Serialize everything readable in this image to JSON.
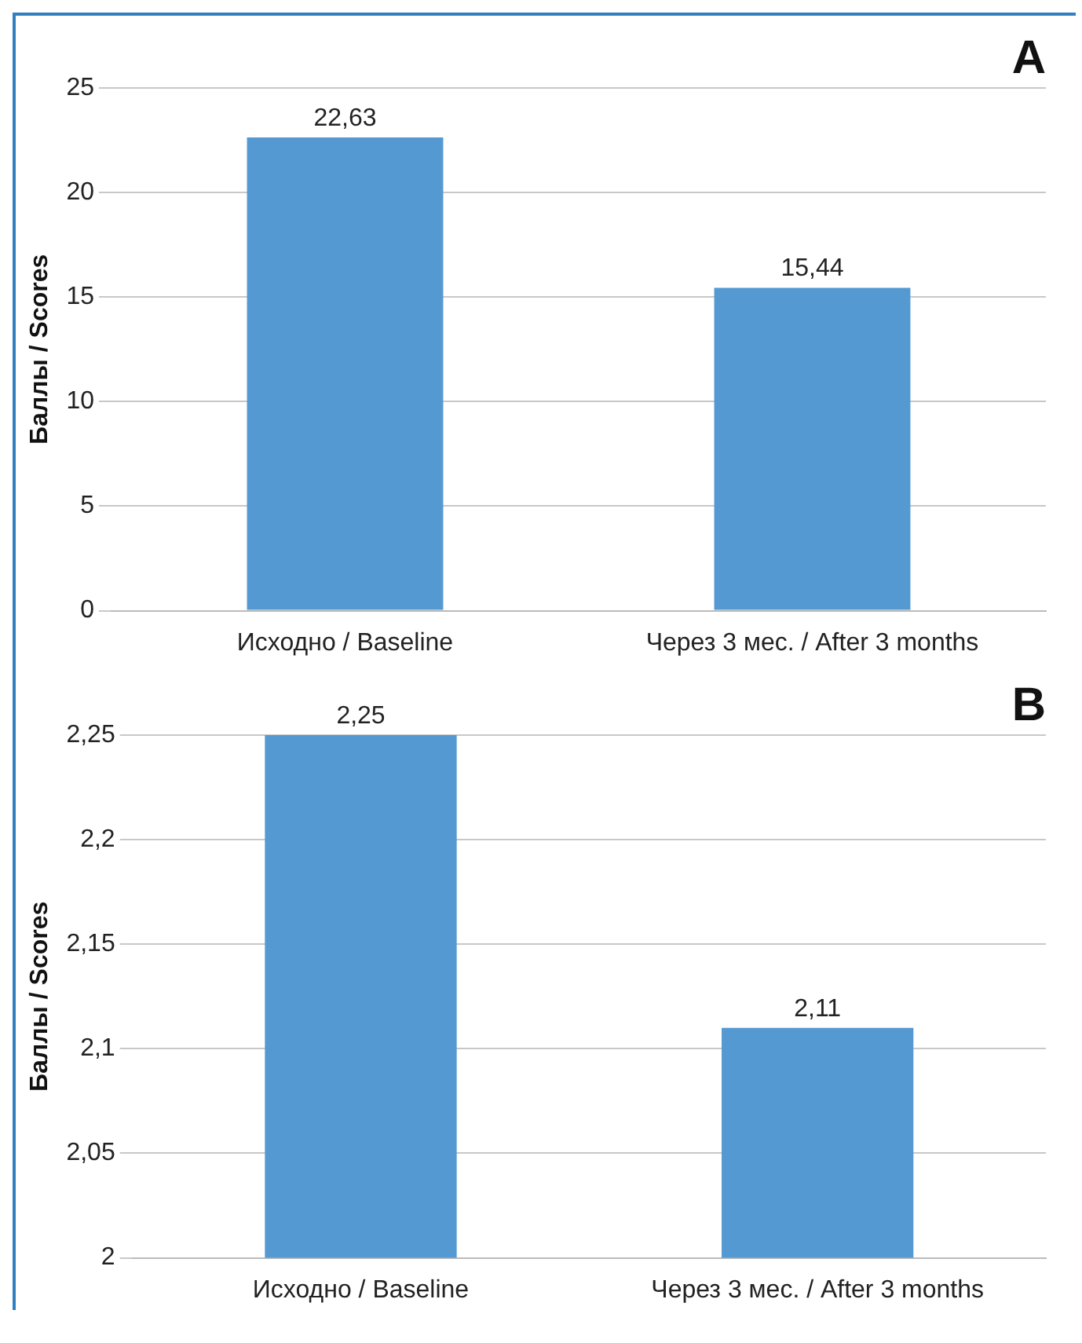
{
  "chart_data": [
    {
      "type": "bar",
      "title": "A",
      "ylabel": "Баллы / Scores",
      "categories": [
        "Исходно / Baseline",
        "Через 3 мес. / After 3 months"
      ],
      "values": [
        22.63,
        15.44
      ],
      "value_labels": [
        "22,63",
        "15,44"
      ],
      "color": "#5599d2",
      "ylim": [
        0,
        25
      ],
      "yticks": [
        0,
        5,
        10,
        15,
        20,
        25
      ],
      "grid": "y",
      "legend": false
    },
    {
      "type": "bar",
      "title": "B",
      "ylabel": "Баллы / Scores",
      "categories": [
        "Исходно / Baseline",
        "Через 3 мес. / After 3 months"
      ],
      "values": [
        2.25,
        2.11
      ],
      "value_labels": [
        "2,25",
        "2,11"
      ],
      "color": "#5599d2",
      "ylim": [
        2,
        2.25
      ],
      "yticks": [
        {
          "value": 2,
          "label": "2"
        },
        {
          "value": 2.05,
          "label": "2,05"
        },
        {
          "value": 2.1,
          "label": "2,1"
        },
        {
          "value": 2.15,
          "label": "2,15"
        },
        {
          "value": 2.2,
          "label": "2,2"
        },
        {
          "value": 2.25,
          "label": "2,25"
        }
      ],
      "grid": "y",
      "legend": false
    }
  ]
}
